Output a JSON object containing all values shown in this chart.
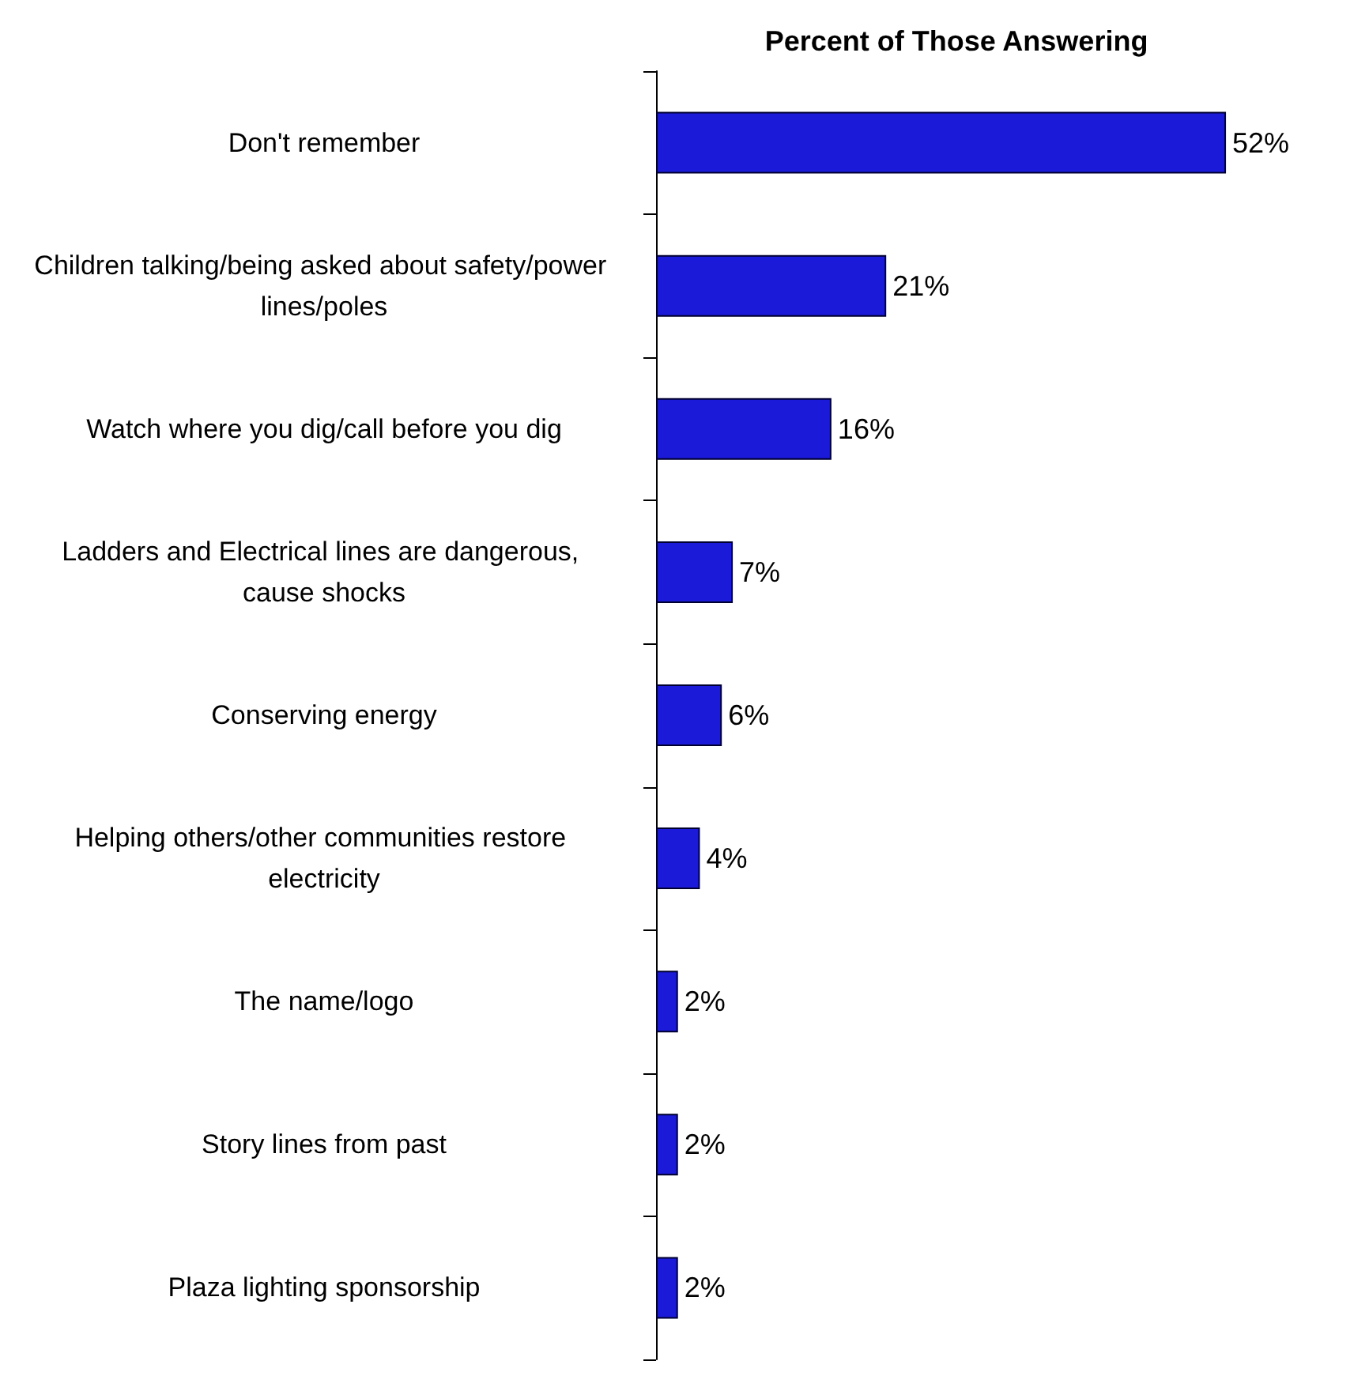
{
  "chart_data": {
    "type": "bar",
    "orientation": "horizontal",
    "title": "Percent of Those Answering",
    "categories": [
      "Don't remember",
      "Children talking/being asked about safety/power lines/poles",
      "Watch where you dig/call before you dig",
      "Ladders and Electrical lines are dangerous, cause shocks",
      "Conserving energy",
      "Helping others/other communities restore electricity",
      "The name/logo",
      "Story lines from past",
      "Plaza lighting sponsorship"
    ],
    "values": [
      52,
      21,
      16,
      7,
      6,
      4,
      2,
      2,
      2
    ],
    "value_labels": [
      "52%",
      "21%",
      "16%",
      "7%",
      "6%",
      "4%",
      "2%",
      "2%",
      "2%"
    ],
    "color": "#1a1ad8",
    "grid": false
  }
}
